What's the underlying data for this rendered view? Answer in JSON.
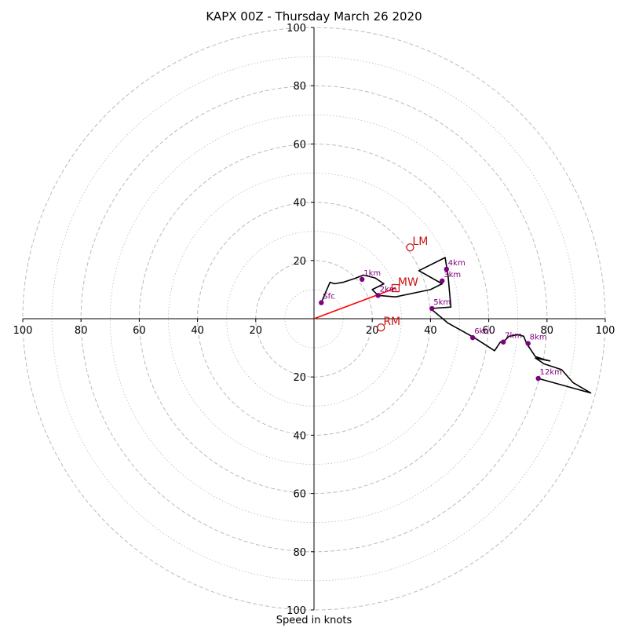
{
  "chart_data": {
    "type": "hodograph",
    "title": "KAPX 00Z - Thursday March 26 2020",
    "xlabel": "Speed in knots",
    "ylabel": "",
    "range": 100,
    "ring_step_major": 20,
    "ring_step_minor": 10,
    "x_ticks": [
      "100",
      "80",
      "60",
      "40",
      "20",
      "20",
      "40",
      "60",
      "80",
      "100"
    ],
    "x_tick_values": [
      -100,
      -80,
      -60,
      -40,
      -20,
      20,
      40,
      60,
      80,
      100
    ],
    "y_ticks": [
      "100",
      "80",
      "60",
      "40",
      "20",
      "20",
      "40",
      "60",
      "80",
      "100"
    ],
    "y_tick_values": [
      100,
      80,
      60,
      40,
      20,
      -20,
      -40,
      -60,
      -80,
      -100
    ],
    "trace_uv": [
      [
        2.5,
        5.5
      ],
      [
        4,
        9
      ],
      [
        5.5,
        12.5
      ],
      [
        7,
        12
      ],
      [
        10,
        12.5
      ],
      [
        14,
        13.8
      ],
      [
        17,
        15
      ],
      [
        21,
        14
      ],
      [
        24,
        12
      ],
      [
        20,
        10
      ],
      [
        22,
        8
      ],
      [
        28,
        7.5
      ],
      [
        40,
        10
      ],
      [
        44,
        12
      ],
      [
        36,
        16.5
      ],
      [
        45,
        21
      ],
      [
        46,
        15
      ],
      [
        47,
        4
      ],
      [
        40,
        3.5
      ],
      [
        46,
        -1.5
      ],
      [
        55,
        -6.5
      ],
      [
        62,
        -11
      ],
      [
        64,
        -8
      ],
      [
        65,
        -8
      ],
      [
        67,
        -6
      ],
      [
        70,
        -5.5
      ],
      [
        72,
        -6
      ],
      [
        73,
        -8.5
      ],
      [
        76,
        -13
      ],
      [
        79,
        -14
      ],
      [
        81,
        -14.5
      ],
      [
        76,
        -13.5
      ],
      [
        79,
        -15.5
      ],
      [
        85,
        -17.5
      ],
      [
        89,
        -22
      ],
      [
        95,
        -25.5
      ],
      [
        77,
        -20.5
      ]
    ],
    "height_points": [
      {
        "label": "Sfc",
        "u": 2.5,
        "v": 5.5
      },
      {
        "label": "1km",
        "u": 16.5,
        "v": 13.5
      },
      {
        "label": "2km",
        "u": 22,
        "v": 8
      },
      {
        "label": "3km",
        "u": 44,
        "v": 13
      },
      {
        "label": "4km",
        "u": 45.5,
        "v": 17
      },
      {
        "label": "5km",
        "u": 40.5,
        "v": 3.5
      },
      {
        "label": "6km",
        "u": 54.5,
        "v": -6.5
      },
      {
        "label": "7km",
        "u": 65,
        "v": -8
      },
      {
        "label": "8km",
        "u": 73.5,
        "v": -8.5
      },
      {
        "label": "12km",
        "u": 77,
        "v": -20.5
      }
    ],
    "storm_motions": [
      {
        "label": "LM",
        "marker": "circle",
        "u": 33,
        "v": 24.5
      },
      {
        "label": "MW",
        "marker": "square",
        "u": 28,
        "v": 10.5
      },
      {
        "label": "RM",
        "marker": "circle",
        "u": 23,
        "v": -3
      }
    ],
    "shear_vector": {
      "u": 28,
      "v": 10.5
    },
    "colors": {
      "trace": "#000000",
      "height_points": "#800080",
      "storm_motion": "#cc1111",
      "shear_vector": "#ff0000",
      "rings": "#bbbbbb"
    }
  }
}
